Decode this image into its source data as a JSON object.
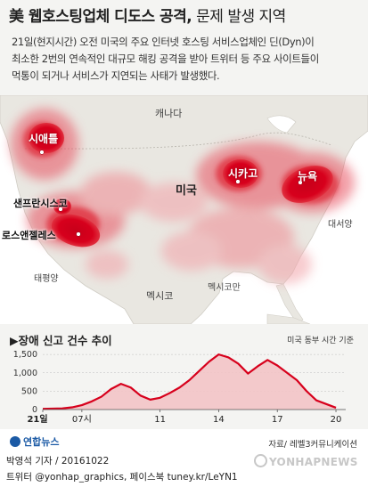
{
  "header": {
    "title_main": "美 웹호스팅업체 디도스 공격,",
    "title_rest": " 문제 발생 지역",
    "description": [
      "21일(현지시간) 오전 미국의 주요 인터넷 호스팅 서비스업체인 딘(Dyn)이",
      "최소한 2번의 연속적인 대규모 해킹 공격을 받아 트위터 등 주요 사이트들이",
      "먹통이 되거나 서비스가 지연되는 사태가 발생했다."
    ]
  },
  "map": {
    "labels": {
      "canada": "캐나다",
      "usa": "미국",
      "mexico": "멕시코",
      "gulf": "멕시코만",
      "atlantic": "대서양",
      "pacific": "태평양"
    },
    "cities": {
      "seattle": "시애틀",
      "san_francisco": "샌프란시스코",
      "los_angeles": "로스앤젤레스",
      "chicago": "시카고",
      "new_york": "뉴욕"
    },
    "colors": {
      "hot": "#d7001c",
      "heat": "#e8505f",
      "land": "#e9e7e1",
      "water": "#ffffff"
    }
  },
  "chart_data": {
    "type": "area",
    "title": "▶장애 신고 건수 추이",
    "note": "미국 동부 시간 기준",
    "x_ticks": [
      "21일",
      "07시",
      "11",
      "14",
      "17",
      "20"
    ],
    "y_ticks": [
      "0",
      "500",
      "1,000",
      "1,500"
    ],
    "ylim": [
      0,
      1600
    ],
    "xlim": [
      5,
      20.5
    ],
    "x": [
      5,
      6,
      6.5,
      7,
      7.5,
      8,
      8.5,
      9,
      9.5,
      10,
      10.5,
      11,
      11.5,
      12,
      12.5,
      13,
      13.5,
      14,
      14.5,
      15,
      15.5,
      16,
      16.5,
      17,
      17.5,
      18,
      18.5,
      19,
      19.5,
      20
    ],
    "values": [
      20,
      30,
      60,
      120,
      220,
      350,
      560,
      700,
      600,
      380,
      270,
      320,
      450,
      600,
      800,
      1050,
      1300,
      1500,
      1420,
      1250,
      980,
      1180,
      1350,
      1200,
      1000,
      800,
      500,
      250,
      150,
      50
    ],
    "color": "#d7001c"
  },
  "footer": {
    "logo": "연합뉴스",
    "source": "자료/ 레벨3커뮤니케이션",
    "credit": "박영석 기자 / 20161022",
    "twitter": "트위터 @yonhap_graphics, 페이스북 tuney.kr/LeYN1",
    "watermark": "YONHAPNEWS"
  }
}
